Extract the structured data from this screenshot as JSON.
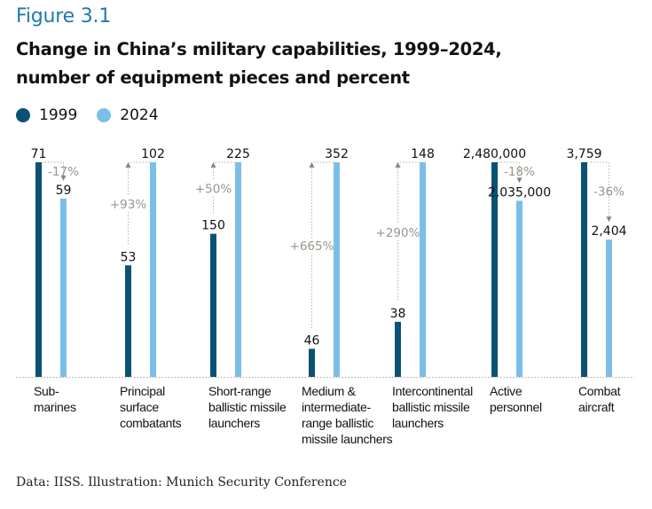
{
  "figure_label": "Figure 3.1",
  "title_line1": "Change in China’s military capabilities, 1999–2024,",
  "title_line2": "number of equipment pieces and percent",
  "source": "Data: IISS. Illustration: Munich Security Conference",
  "colors": {
    "series_1999": "#0a5275",
    "series_2024": "#7bbfe8",
    "change_text": "#9a948c",
    "connector": "#b5b0aa",
    "baseline": "#aaaaaa",
    "figure_label": "#1f7aab"
  },
  "chart_data": {
    "type": "bar",
    "title": "Change in China’s military capabilities, 1999–2024, number of equipment pieces and percent",
    "xlabel": "",
    "ylabel": "",
    "legend_position": "top-left",
    "grid": false,
    "normalization": "each category scaled independently to its larger value",
    "categories": [
      "Sub-\nmarines",
      "Principal\nsurface\ncombatants",
      "Short-range\nballistic missile\nlaunchers",
      "Medium &\nintermediate-\nrange ballistic\nmissile launchers",
      "Intercontinental\nballistic missile\nlaunchers",
      "Active\npersonnel",
      "Combat\naircraft"
    ],
    "series": [
      {
        "name": "1999",
        "values": [
          71,
          53,
          150,
          46,
          38,
          2480000,
          3759
        ],
        "labels": [
          "71",
          "53",
          "150",
          "46",
          "38",
          "2,480,000",
          "3,759"
        ]
      },
      {
        "name": "2024",
        "values": [
          59,
          102,
          225,
          352,
          148,
          2035000,
          2404
        ],
        "labels": [
          "59",
          "102",
          "225",
          "352",
          "148",
          "2,035,000",
          "2,404"
        ]
      }
    ],
    "changes": [
      "-17%",
      "+93%",
      "+50%",
      "+665%",
      "+290%",
      "-18%",
      "-36%"
    ]
  }
}
